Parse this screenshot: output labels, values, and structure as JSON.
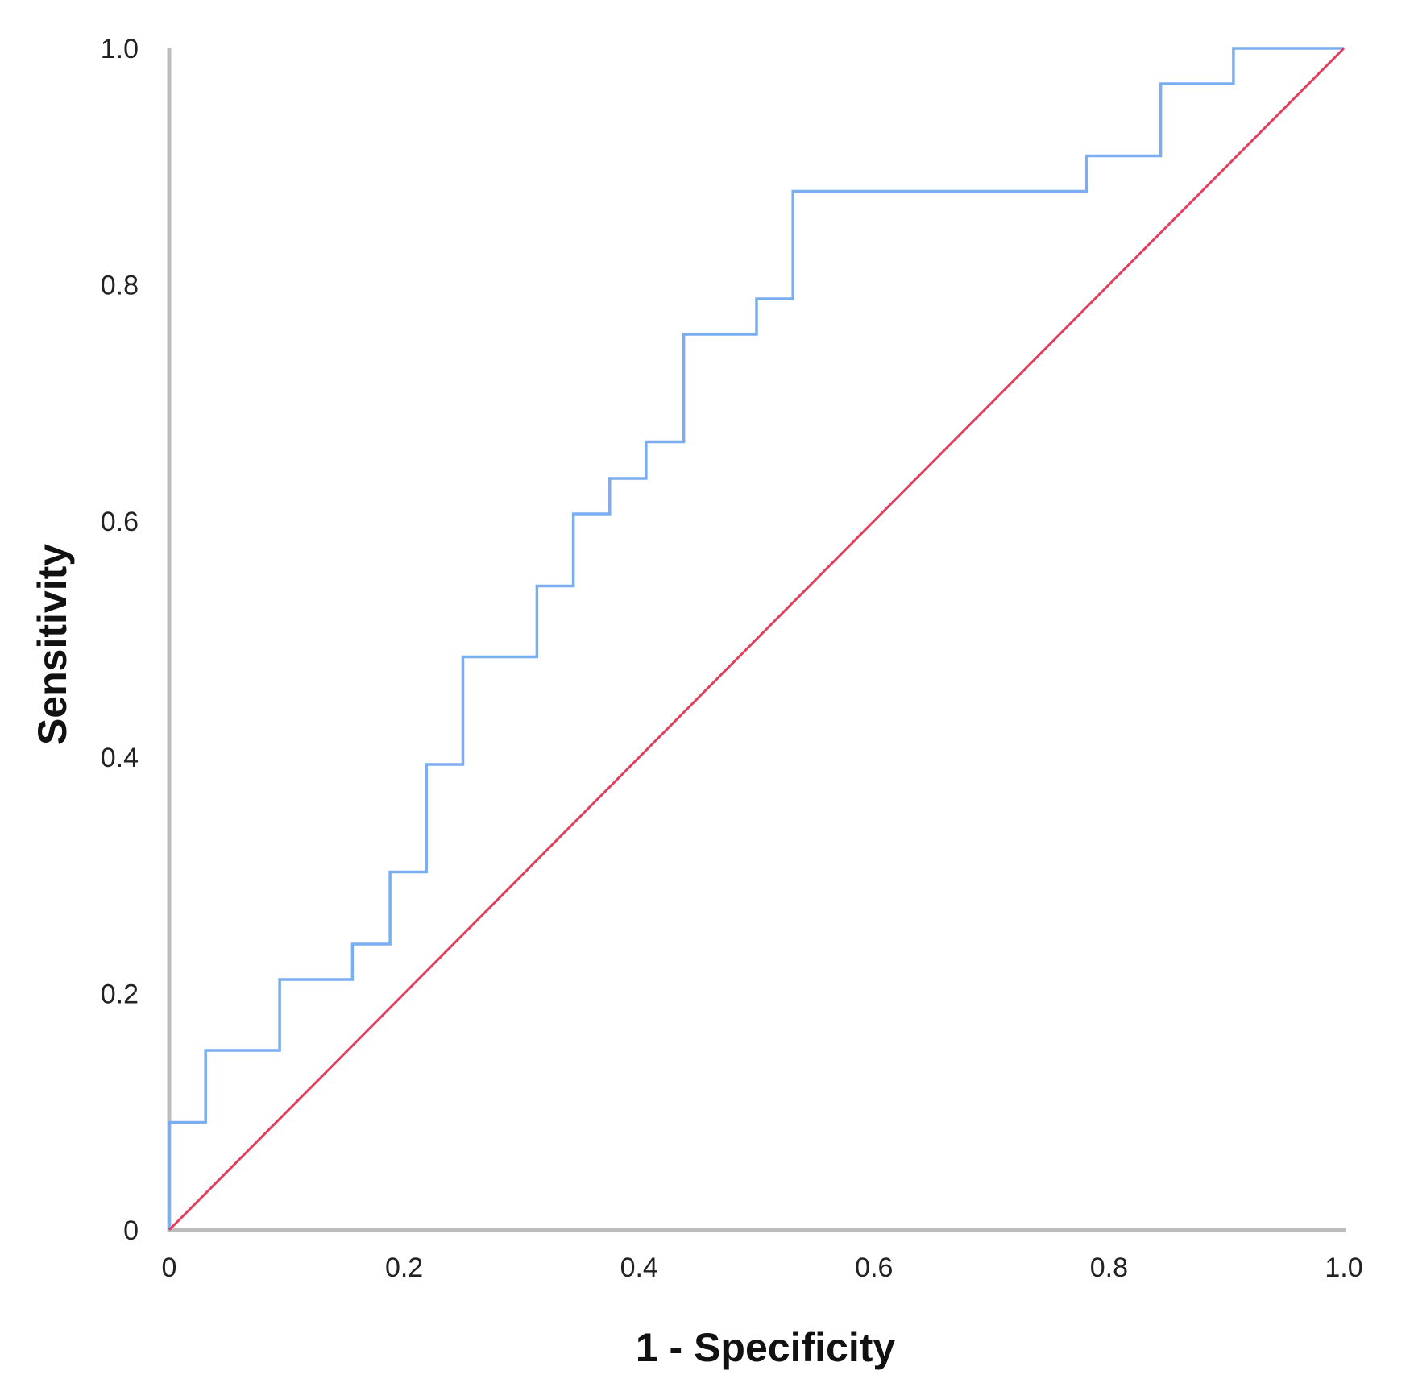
{
  "chart_data": {
    "type": "line",
    "title": "",
    "xlabel": "1 - Specificity",
    "ylabel": "Sensitivity",
    "xlim": [
      0,
      1
    ],
    "ylim": [
      0,
      1
    ],
    "x_ticks": [
      0,
      0.2,
      0.4,
      0.6,
      0.8,
      1.0
    ],
    "x_tick_labels": [
      "0",
      "0.2",
      "0.4",
      "0.6",
      "0.8",
      "1.0"
    ],
    "y_ticks": [
      0,
      0.2,
      0.4,
      0.6,
      0.8,
      1.0
    ],
    "y_tick_labels": [
      "0",
      "0.2",
      "0.4",
      "0.6",
      "0.8",
      "1.0"
    ],
    "grid": false,
    "legend": "none",
    "series": [
      {
        "color": "#7aaef0",
        "style": "step",
        "x": [
          0.0,
          0.0,
          0.031,
          0.031,
          0.094,
          0.094,
          0.156,
          0.156,
          0.188,
          0.188,
          0.219,
          0.219,
          0.25,
          0.25,
          0.313,
          0.313,
          0.344,
          0.344,
          0.375,
          0.375,
          0.406,
          0.406,
          0.438,
          0.438,
          0.5,
          0.5,
          0.531,
          0.531,
          0.781,
          0.781,
          0.844,
          0.844,
          0.906,
          0.906,
          0.938,
          0.938,
          1.0
        ],
        "y": [
          0.0,
          0.091,
          0.091,
          0.152,
          0.152,
          0.212,
          0.212,
          0.242,
          0.242,
          0.303,
          0.303,
          0.394,
          0.394,
          0.485,
          0.485,
          0.545,
          0.545,
          0.606,
          0.606,
          0.636,
          0.636,
          0.667,
          0.667,
          0.758,
          0.758,
          0.788,
          0.788,
          0.879,
          0.879,
          0.909,
          0.909,
          0.97,
          0.97,
          1.0,
          1.0,
          1.0,
          1.0
        ]
      },
      {
        "color": "#e0405e",
        "style": "line",
        "x": [
          0,
          1
        ],
        "y": [
          0,
          1
        ]
      }
    ]
  }
}
